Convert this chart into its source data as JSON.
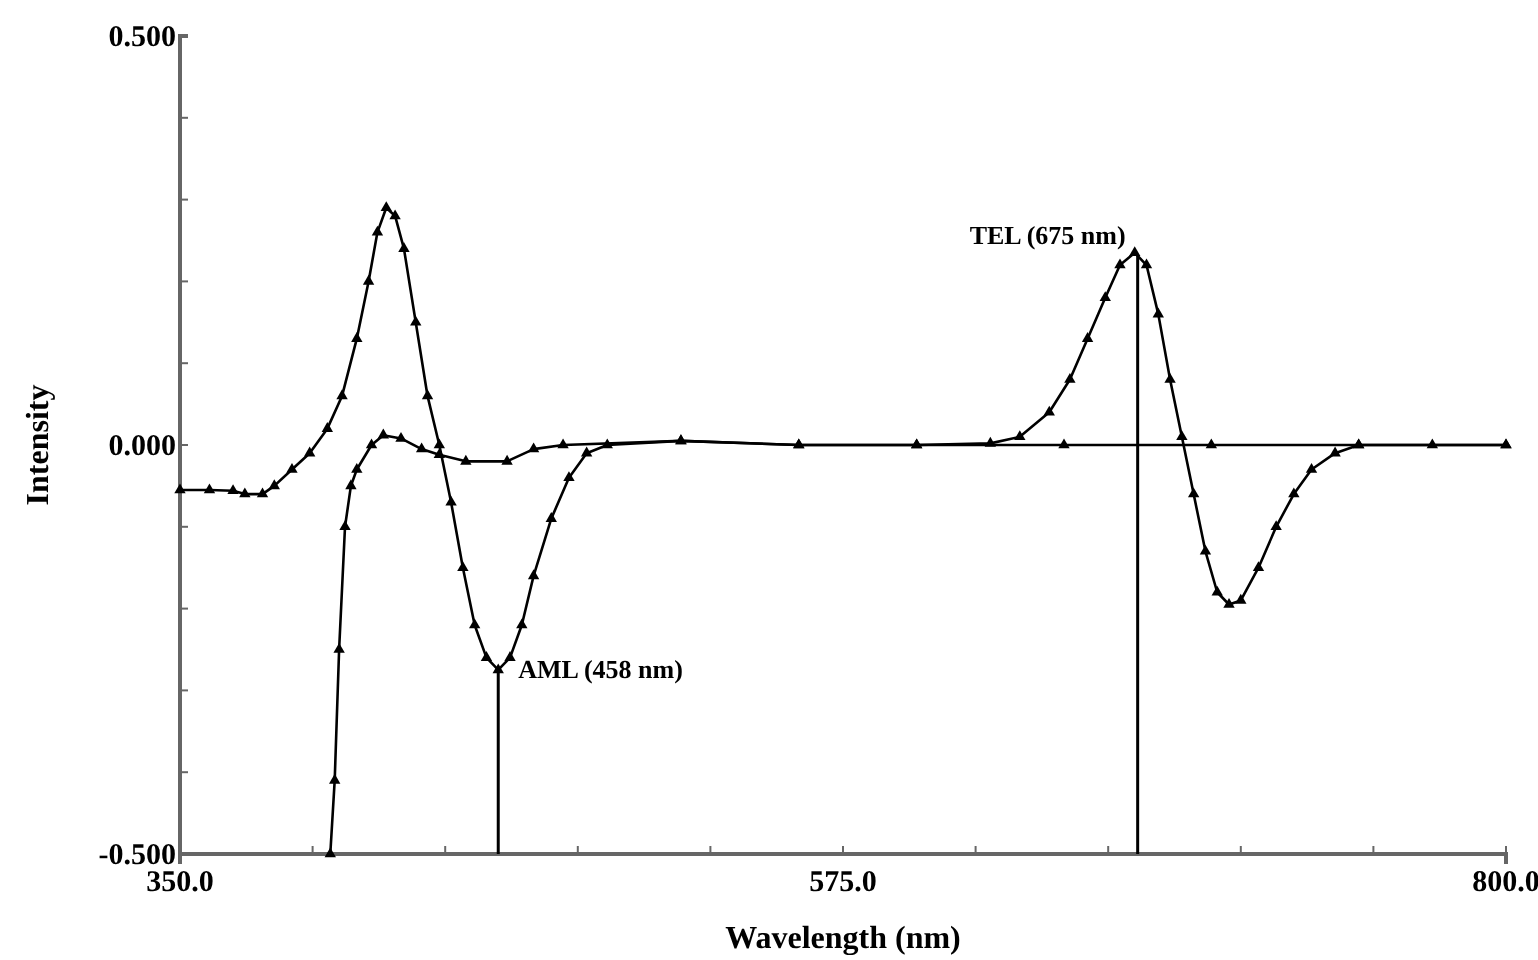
{
  "chart_data": {
    "type": "line",
    "xlabel": "Wavelength (nm)",
    "ylabel": "Intensity",
    "xlim": [
      350,
      800
    ],
    "xticks": [
      {
        "value": 350,
        "label": "350.0"
      },
      {
        "value": 395,
        "label": null
      },
      {
        "value": 440,
        "label": null
      },
      {
        "value": 485,
        "label": null
      },
      {
        "value": 530,
        "label": null
      },
      {
        "value": 575,
        "label": "575.0"
      },
      {
        "value": 620,
        "label": null
      },
      {
        "value": 665,
        "label": null
      },
      {
        "value": 710,
        "label": null
      },
      {
        "value": 755,
        "label": null
      },
      {
        "value": 800,
        "label": "800.0"
      }
    ],
    "ylim": [
      -0.5,
      0.5
    ],
    "yticks": [
      {
        "value": -0.5,
        "label": "-0.500"
      },
      {
        "value": -0.4,
        "label": null
      },
      {
        "value": -0.3,
        "label": null
      },
      {
        "value": -0.2,
        "label": null
      },
      {
        "value": -0.1,
        "label": null
      },
      {
        "value": 0,
        "label": "0.000"
      },
      {
        "value": 0.1,
        "label": null
      },
      {
        "value": 0.2,
        "label": null
      },
      {
        "value": 0.3,
        "label": null
      },
      {
        "value": 0.4,
        "label": null
      },
      {
        "value": 0.5,
        "label": "0.500"
      }
    ],
    "grid": false,
    "marker": "triangle",
    "line_style": "solid",
    "series": [
      {
        "color": "#000000",
        "x": [
          350,
          360,
          368,
          372,
          378,
          382,
          388,
          394,
          400,
          405,
          410,
          414,
          417,
          420,
          423,
          426,
          430,
          434,
          438,
          442,
          446,
          450,
          454,
          458,
          462,
          466,
          470,
          476,
          482,
          488,
          495,
          520,
          560,
          600,
          625,
          635,
          645,
          652,
          658,
          664,
          669,
          674,
          678,
          682,
          686,
          690,
          694,
          698,
          702,
          706,
          710,
          716,
          722,
          728,
          734,
          742,
          750,
          775,
          800
        ],
        "values": [
          -0.055,
          -0.055,
          -0.056,
          -0.06,
          -0.06,
          -0.05,
          -0.03,
          -0.01,
          0.02,
          0.06,
          0.13,
          0.2,
          0.26,
          0.29,
          0.28,
          0.24,
          0.15,
          0.06,
          0.0,
          -0.07,
          -0.15,
          -0.22,
          -0.26,
          -0.275,
          -0.26,
          -0.22,
          -0.16,
          -0.09,
          -0.04,
          -0.01,
          0.0,
          0.005,
          0.0,
          0.0,
          0.002,
          0.01,
          0.04,
          0.08,
          0.13,
          0.18,
          0.22,
          0.235,
          0.22,
          0.16,
          0.08,
          0.01,
          -0.06,
          -0.13,
          -0.18,
          -0.195,
          -0.19,
          -0.15,
          -0.1,
          -0.06,
          -0.03,
          -0.01,
          0.0,
          0.0,
          0.0
        ]
      },
      {
        "color": "#000000",
        "x": [
          401,
          402.5,
          404,
          406,
          408,
          410,
          415,
          419,
          425,
          432,
          438,
          447,
          461,
          470,
          480,
          520,
          560,
          600,
          650,
          700,
          750,
          800
        ],
        "values": [
          -0.5,
          -0.41,
          -0.25,
          -0.1,
          -0.05,
          -0.03,
          0.0,
          0.012,
          0.008,
          -0.005,
          -0.012,
          -0.02,
          -0.02,
          -0.005,
          0.0,
          0.005,
          0.0,
          0.0,
          0.0,
          0.0,
          0.0,
          0.0
        ]
      }
    ],
    "ref_lines": [
      {
        "axis": "x",
        "value": 458,
        "label": "AML (458 nm)",
        "color": "#000000"
      },
      {
        "axis": "x",
        "value": 675,
        "label": "TEL (675 nm)",
        "color": "#000000"
      }
    ]
  }
}
